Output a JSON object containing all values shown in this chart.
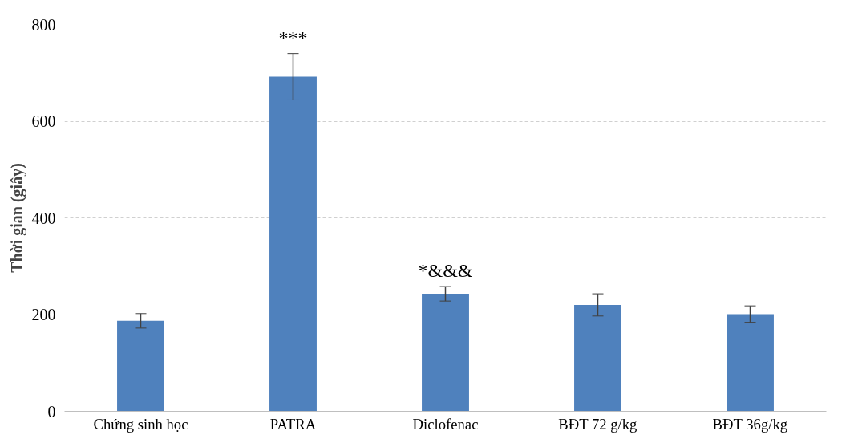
{
  "chart_data": {
    "type": "bar",
    "ylabel": "Thời gian (giây)",
    "categories": [
      "Chứng sinh học",
      "PATRA",
      "Diclofenac",
      "BĐT 72 g/kg",
      "BĐT 36g/kg"
    ],
    "values": [
      187,
      692,
      243,
      220,
      201
    ],
    "errors": [
      15,
      48,
      15,
      23,
      17
    ],
    "color": "#4f81bd",
    "ylim": [
      0,
      800
    ],
    "yticks": [
      0,
      200,
      400,
      600,
      800
    ],
    "grid": "y",
    "annotations": [
      {
        "text": "***",
        "x": "PATRA",
        "y": 741
      },
      {
        "text": "*&&&",
        "x": "Diclofenac",
        "y": 259
      }
    ]
  }
}
